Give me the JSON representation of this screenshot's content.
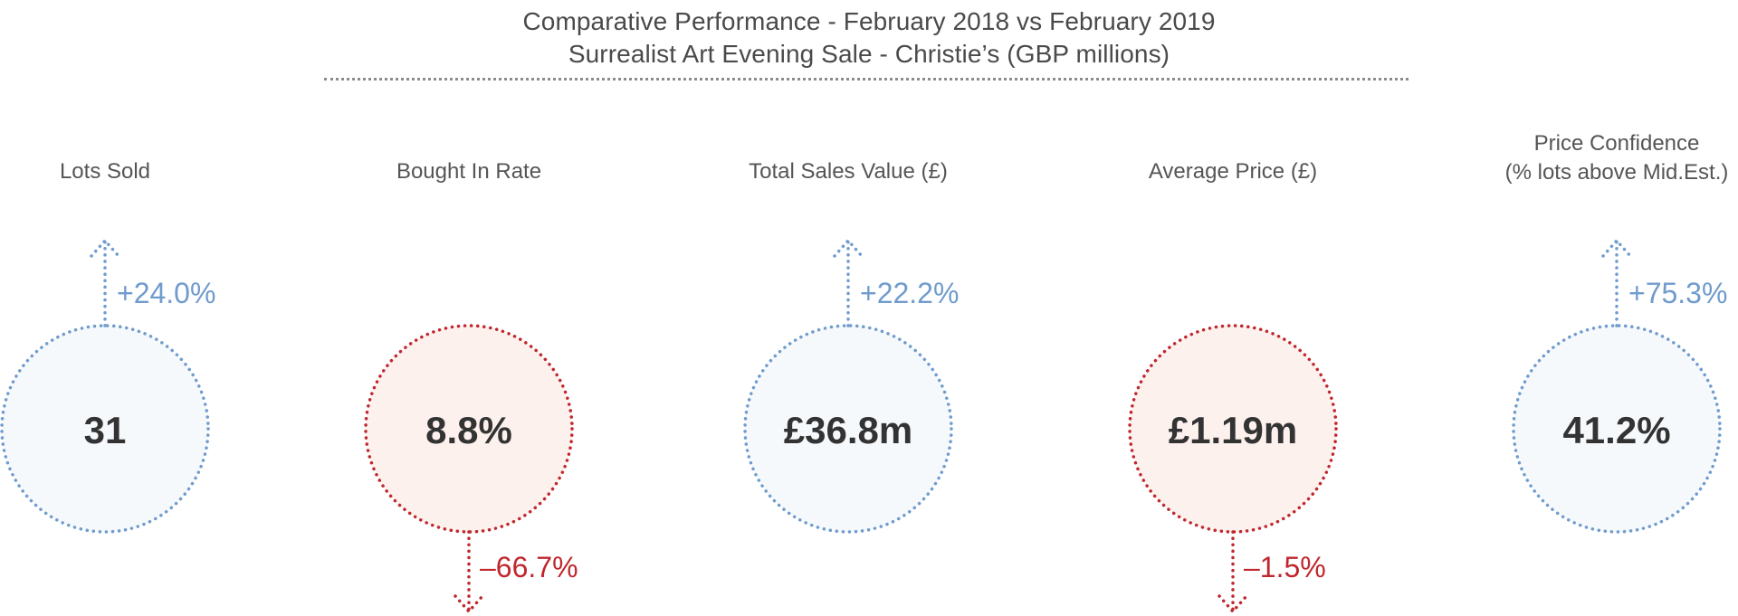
{
  "title": {
    "line1": "Comparative Performance - February 2018 vs February 2019",
    "line2": "Surrealist Art Evening Sale - Christie’s (GBP millions)"
  },
  "colors": {
    "increase_stroke": "#6f9bcd",
    "increase_fill": "#f6f9fc",
    "decrease_stroke": "#c0272d",
    "decrease_fill": "#fdf1ee"
  },
  "chart_data": {
    "type": "table",
    "metrics": [
      {
        "label_lines": [
          "Lots Sold"
        ],
        "value": "31",
        "change": "+24.0%",
        "change_pct": 24.0,
        "direction": "up"
      },
      {
        "label_lines": [
          "Bought In Rate"
        ],
        "value": "8.8%",
        "change": "–66.7%",
        "change_pct": -66.7,
        "direction": "down"
      },
      {
        "label_lines": [
          "Total Sales Value (£)"
        ],
        "value": "£36.8m",
        "change": "+22.2%",
        "change_pct": 22.2,
        "direction": "up"
      },
      {
        "label_lines": [
          "Average Price (£)"
        ],
        "value": "£1.19m",
        "change": "–1.5%",
        "change_pct": -1.5,
        "direction": "down"
      },
      {
        "label_lines": [
          "Price Confidence",
          "(% lots above Mid.Est.)"
        ],
        "value": "41.2%",
        "change": "+75.3%",
        "change_pct": 75.3,
        "direction": "up"
      }
    ]
  }
}
